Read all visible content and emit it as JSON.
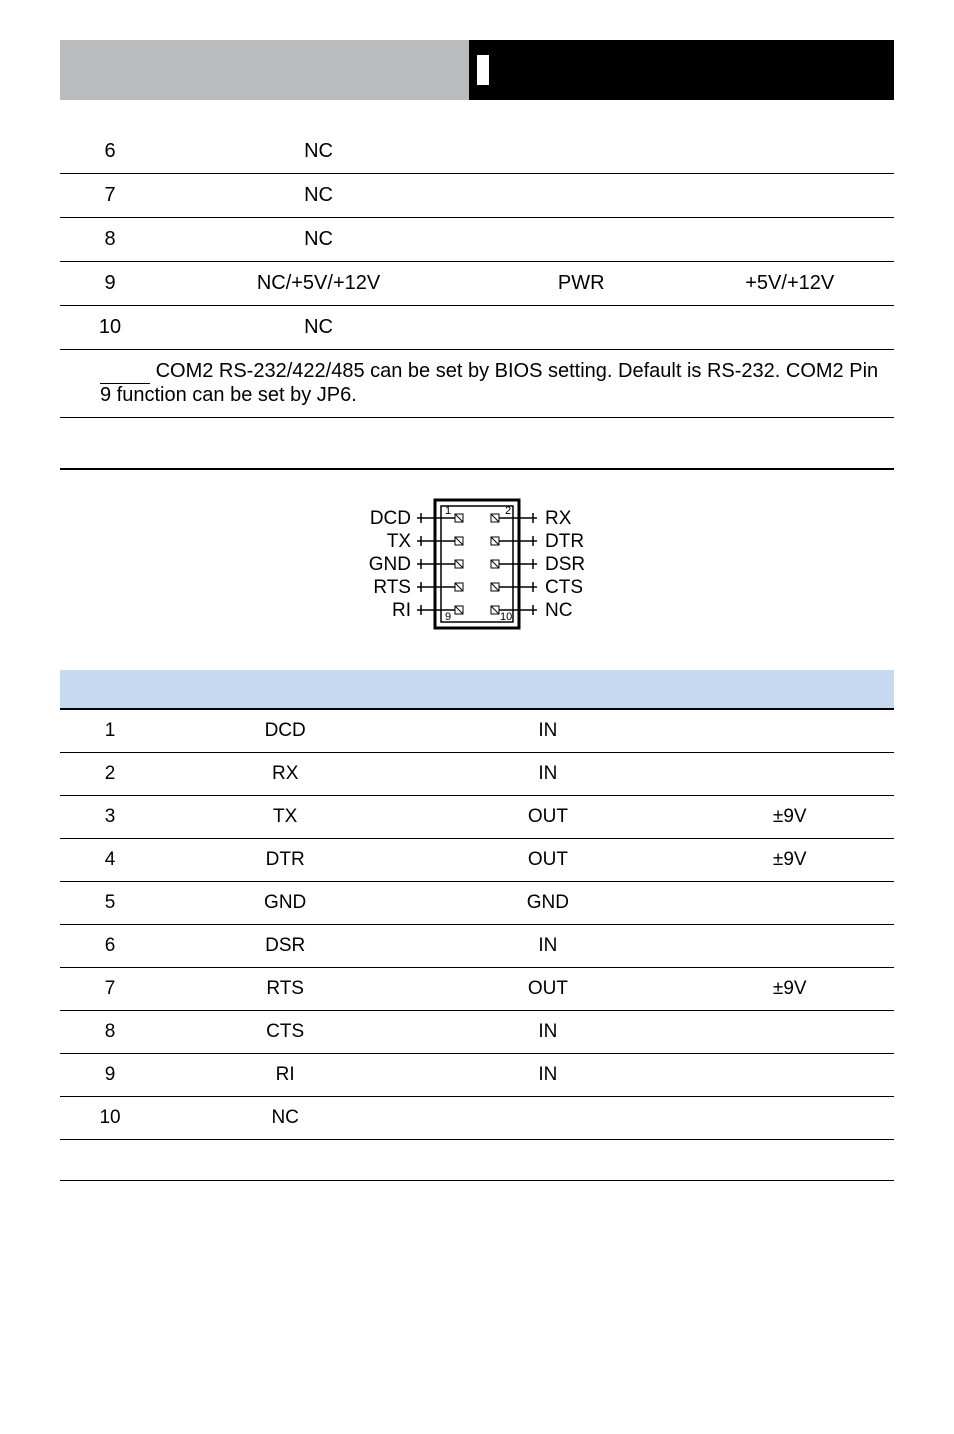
{
  "table1": {
    "rows": [
      {
        "pin": "6",
        "sig": "NC",
        "dir": "",
        "volt": ""
      },
      {
        "pin": "7",
        "sig": "NC",
        "dir": "",
        "volt": ""
      },
      {
        "pin": "8",
        "sig": "NC",
        "dir": "",
        "volt": ""
      },
      {
        "pin": "9",
        "sig": "NC/+5V/+12V",
        "dir": "PWR",
        "volt": "+5V/+12V"
      },
      {
        "pin": "10",
        "sig": "NC",
        "dir": "",
        "volt": ""
      }
    ],
    "note": "COM2 RS-232/422/485 can be set by BIOS setting. Default is RS-232. COM2 Pin 9 function can be set by JP6."
  },
  "pinout": {
    "left": [
      "DCD",
      "TX",
      "GND",
      "RTS",
      "RI"
    ],
    "right": [
      "RX",
      "DTR",
      "DSR",
      "CTS",
      "NC"
    ],
    "corner_labels": {
      "tl": "1",
      "tr": "2",
      "bl": "9",
      "br": "10"
    }
  },
  "table2": {
    "rows": [
      {
        "pin": "1",
        "sig": "DCD",
        "dir": "IN",
        "volt": ""
      },
      {
        "pin": "2",
        "sig": "RX",
        "dir": "IN",
        "volt": ""
      },
      {
        "pin": "3",
        "sig": "TX",
        "dir": "OUT",
        "volt": "±9V"
      },
      {
        "pin": "4",
        "sig": "DTR",
        "dir": "OUT",
        "volt": "±9V"
      },
      {
        "pin": "5",
        "sig": "GND",
        "dir": "GND",
        "volt": ""
      },
      {
        "pin": "6",
        "sig": "DSR",
        "dir": "IN",
        "volt": ""
      },
      {
        "pin": "7",
        "sig": "RTS",
        "dir": "OUT",
        "volt": "±9V"
      },
      {
        "pin": "8",
        "sig": "CTS",
        "dir": "IN",
        "volt": ""
      },
      {
        "pin": "9",
        "sig": "RI",
        "dir": "IN",
        "volt": ""
      },
      {
        "pin": "10",
        "sig": "NC",
        "dir": "",
        "volt": ""
      }
    ]
  }
}
